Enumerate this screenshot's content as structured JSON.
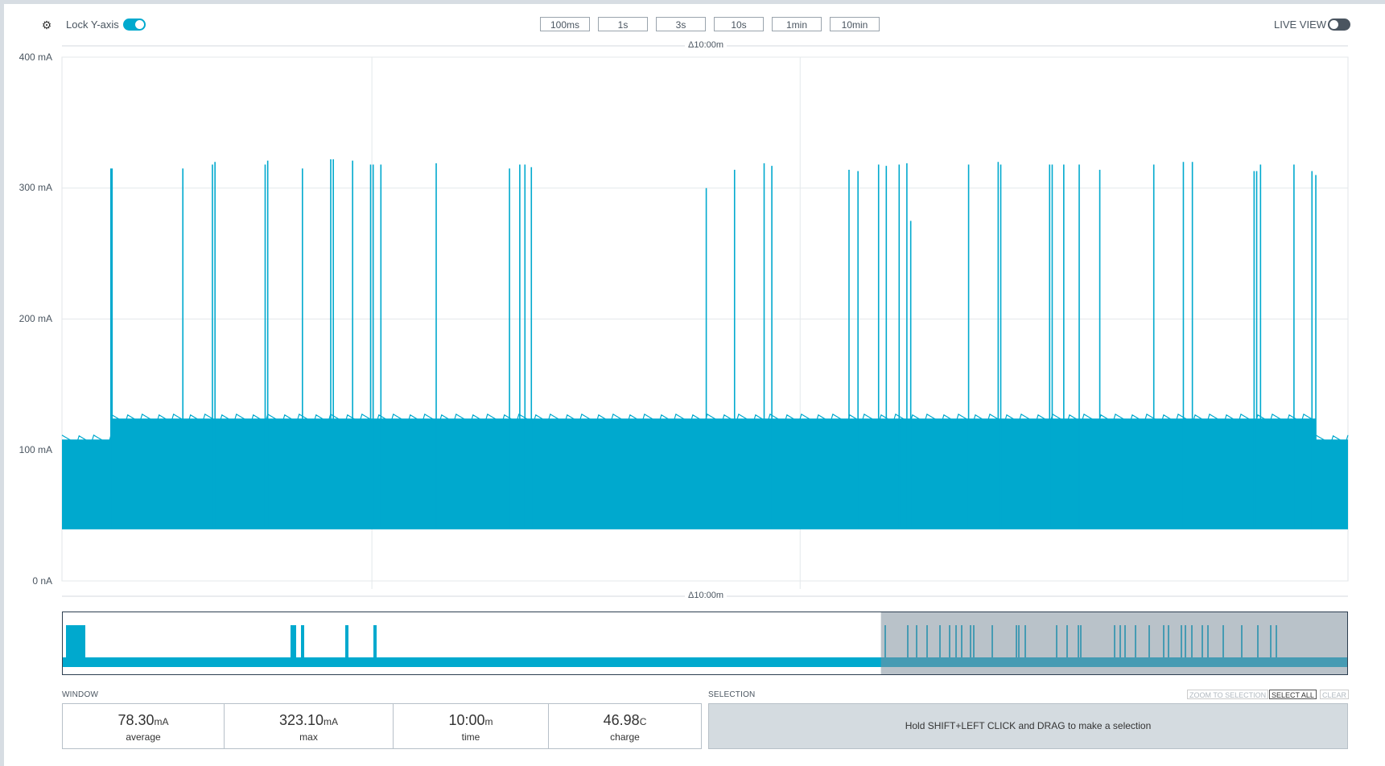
{
  "toolbar": {
    "lock_y_label": "Lock Y-axis",
    "lock_y_on": true,
    "live_view_label": "LIVE VIEW",
    "live_view_on": false,
    "time_windows": [
      "100ms",
      "1s",
      "3s",
      "10s",
      "1min",
      "10min"
    ]
  },
  "chart": {
    "delta_top": "Δ10:00m",
    "delta_bottom": "Δ10:00m",
    "y_ticks": [
      "400 mA",
      "300 mA",
      "200 mA",
      "100 mA",
      "0 nA"
    ]
  },
  "chart_data": {
    "type": "line",
    "title": "",
    "xlabel": "",
    "ylabel": "",
    "ylim": [
      0,
      400
    ],
    "y_tick_values": [
      0,
      100,
      200,
      300,
      400
    ],
    "y_unit": "mA",
    "x_range_label": "Δ10:00m",
    "series": [
      {
        "color": "#00a9ce",
        "baseline_mA": 40,
        "band_segments": [
          {
            "from": 0.0,
            "to": 0.038,
            "upper_mA": 108
          },
          {
            "from": 0.038,
            "to": 0.975,
            "upper_mA": 124
          },
          {
            "from": 0.975,
            "to": 1.0,
            "upper_mA": 108
          }
        ],
        "spikes": [
          {
            "t": 0.038,
            "mA": 315
          },
          {
            "t": 0.039,
            "mA": 315
          },
          {
            "t": 0.094,
            "mA": 315
          },
          {
            "t": 0.117,
            "mA": 318
          },
          {
            "t": 0.119,
            "mA": 320
          },
          {
            "t": 0.158,
            "mA": 318
          },
          {
            "t": 0.16,
            "mA": 321
          },
          {
            "t": 0.187,
            "mA": 315
          },
          {
            "t": 0.209,
            "mA": 322
          },
          {
            "t": 0.211,
            "mA": 322
          },
          {
            "t": 0.226,
            "mA": 321
          },
          {
            "t": 0.24,
            "mA": 318
          },
          {
            "t": 0.242,
            "mA": 318
          },
          {
            "t": 0.248,
            "mA": 318
          },
          {
            "t": 0.291,
            "mA": 319
          },
          {
            "t": 0.348,
            "mA": 315
          },
          {
            "t": 0.356,
            "mA": 318
          },
          {
            "t": 0.36,
            "mA": 318
          },
          {
            "t": 0.365,
            "mA": 316
          },
          {
            "t": 0.501,
            "mA": 300
          },
          {
            "t": 0.523,
            "mA": 314
          },
          {
            "t": 0.546,
            "mA": 319
          },
          {
            "t": 0.552,
            "mA": 317
          },
          {
            "t": 0.612,
            "mA": 314
          },
          {
            "t": 0.619,
            "mA": 313
          },
          {
            "t": 0.635,
            "mA": 318
          },
          {
            "t": 0.641,
            "mA": 317
          },
          {
            "t": 0.651,
            "mA": 318
          },
          {
            "t": 0.657,
            "mA": 319
          },
          {
            "t": 0.66,
            "mA": 275
          },
          {
            "t": 0.705,
            "mA": 318
          },
          {
            "t": 0.728,
            "mA": 320
          },
          {
            "t": 0.73,
            "mA": 318
          },
          {
            "t": 0.768,
            "mA": 318
          },
          {
            "t": 0.77,
            "mA": 318
          },
          {
            "t": 0.779,
            "mA": 318
          },
          {
            "t": 0.791,
            "mA": 318
          },
          {
            "t": 0.807,
            "mA": 314
          },
          {
            "t": 0.849,
            "mA": 318
          },
          {
            "t": 0.872,
            "mA": 320
          },
          {
            "t": 0.879,
            "mA": 320
          },
          {
            "t": 0.927,
            "mA": 313
          },
          {
            "t": 0.929,
            "mA": 313
          },
          {
            "t": 0.932,
            "mA": 318
          },
          {
            "t": 0.958,
            "mA": 318
          },
          {
            "t": 0.972,
            "mA": 313
          },
          {
            "t": 0.975,
            "mA": 310
          }
        ]
      }
    ]
  },
  "minimap": {
    "selected_range": [
      0.637,
      1.0
    ]
  },
  "window": {
    "title": "WINDOW",
    "stats": [
      {
        "value": "78.30",
        "unit": "mA",
        "label": "average"
      },
      {
        "value": "323.10",
        "unit": "mA",
        "label": "max"
      },
      {
        "value": "10:00",
        "unit": "m",
        "label": "time"
      },
      {
        "value": "46.98",
        "unit": "C",
        "label": "charge"
      }
    ]
  },
  "selection": {
    "title": "SELECTION",
    "hint": "Hold SHIFT+LEFT CLICK and DRAG to make a selection",
    "zoom_label": "ZOOM TO SELECTION",
    "select_all_label": "SELECT ALL",
    "clear_label": "CLEAR"
  },
  "colors": {
    "trace": "#00a9ce",
    "toggle_on": "#00a9ce",
    "toggle_off": "#4a5560",
    "selection_overlay": "#7f8f9c"
  }
}
